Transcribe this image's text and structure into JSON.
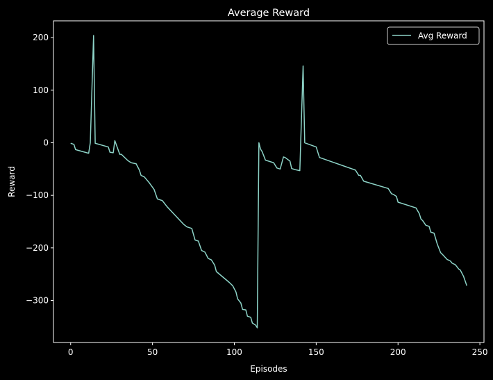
{
  "chart_data": {
    "type": "line",
    "title": "Average Reward",
    "xlabel": "Episodes",
    "ylabel": "Reward",
    "xlim": [
      -10.5,
      252.5
    ],
    "ylim": [
      -380,
      232
    ],
    "xticks": [
      0,
      50,
      100,
      150,
      200,
      250
    ],
    "yticks": [
      -300,
      -200,
      -100,
      0,
      100,
      200
    ],
    "grid": false,
    "legend_position": "top-right",
    "colors": {
      "background": "#000000",
      "axes": "#ffffff",
      "series": "#8dd3c7"
    },
    "series": [
      {
        "name": "Avg Reward",
        "x": [
          0,
          2,
          3,
          11,
          12,
          14,
          15,
          23,
          24,
          26,
          27,
          30,
          31,
          35,
          37,
          40,
          42,
          43,
          45,
          48,
          51,
          53,
          54,
          56,
          59,
          69,
          71,
          74,
          76,
          78,
          80,
          82,
          84,
          86,
          88,
          89,
          97,
          99,
          101,
          102,
          104,
          105,
          107,
          108,
          110,
          111,
          113,
          114,
          115,
          116,
          117,
          119,
          120,
          124,
          126,
          128,
          130,
          131,
          134,
          135,
          137,
          140,
          142,
          143,
          150,
          152,
          174,
          176,
          177,
          179,
          180,
          194,
          196,
          197,
          199,
          200,
          211,
          213,
          214,
          215,
          217,
          219,
          220,
          222,
          224,
          226,
          227,
          230,
          232,
          233,
          235,
          237,
          238,
          240,
          242
        ],
        "y": [
          -1,
          -3,
          -13,
          -20,
          0,
          204,
          -1,
          -8,
          -18,
          -19,
          4,
          -22,
          -22,
          -34,
          -38,
          -40,
          -52,
          -62,
          -65,
          -76,
          -89,
          -107,
          -108,
          -110,
          -122,
          -155,
          -160,
          -163,
          -185,
          -187,
          -205,
          -208,
          -220,
          -223,
          -233,
          -245,
          -266,
          -272,
          -284,
          -297,
          -305,
          -317,
          -318,
          -330,
          -332,
          -343,
          -347,
          -352,
          0,
          -12,
          -17,
          -33,
          -34,
          -38,
          -48,
          -50,
          -27,
          -28,
          -35,
          -49,
          -51,
          -53,
          146,
          0,
          -8,
          -28,
          -52,
          -62,
          -62,
          -73,
          -74,
          -87,
          -97,
          -98,
          -102,
          -113,
          -124,
          -135,
          -145,
          -148,
          -157,
          -159,
          -170,
          -172,
          -193,
          -209,
          -212,
          -222,
          -225,
          -229,
          -232,
          -240,
          -242,
          -254,
          -272
        ]
      }
    ]
  }
}
